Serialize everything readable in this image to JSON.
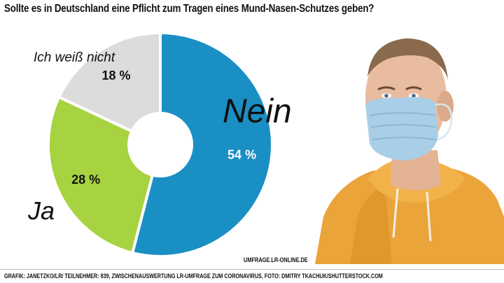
{
  "title": "Sollte es in Deutschland eine Pflicht zum Tragen eines Mund-Nasen-Schutzes geben?",
  "chart_data": {
    "type": "pie",
    "variant": "donut",
    "title": "Sollte es in Deutschland eine Pflicht zum Tragen eines Mund-Nasen-Schutzes geben?",
    "categories": [
      "Nein",
      "Ja",
      "Ich weiß nicht"
    ],
    "values": [
      54,
      28,
      18
    ],
    "value_labels": [
      "54 %",
      "28 %",
      "18 %"
    ],
    "colors": [
      "#1a8fc4",
      "#a6d33f",
      "#dcdcdc"
    ],
    "label_colors": [
      "#ffffff",
      "#111111",
      "#111111"
    ]
  },
  "source_url": "UMFRAGE.LR-ONLINE.DE",
  "credits": "GRAFIK: JANETZKO/LR/ TEILNEHMER: 839, ZWISCHENAUSWERTUNG LR-UMFRAGE ZUM CORONAVIRUS, FOTO: DMITRY TKACHUK/SHUTTERSTOCK.COM"
}
